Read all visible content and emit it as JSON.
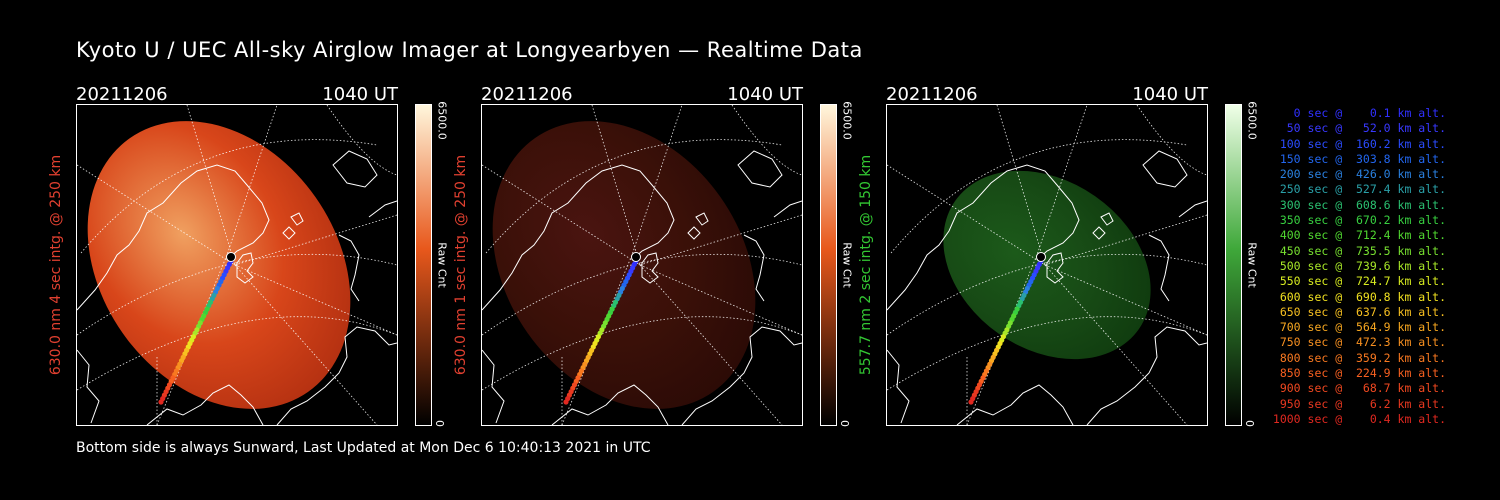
{
  "title": "Kyoto U / UEC All-sky Airglow Imager at Longyearbyen — Realtime Data",
  "footer": "Bottom side is always Sunward, Last Updated at Mon Dec  6 10:40:13 2021 in UTC",
  "colors": {
    "panel_red": "#e0401f",
    "panel_green": "#33c733"
  },
  "panels": [
    {
      "date": "20211206",
      "time": "1040 UT",
      "ylabel": "630.0 nm 4 sec intg. @ 250 km",
      "label_color": "#e04030",
      "colorbar_top": "#fff6dc",
      "colorbar_mid": "#e8581c",
      "colorbar_bottom": "#000000",
      "colorbar_max": "6500.0",
      "colorbar_min": "0",
      "colorbar_unit": "Raw Cnt",
      "image_tone": "bright-red",
      "image_level": 0.85
    },
    {
      "date": "20211206",
      "time": "1040 UT",
      "ylabel": "630.0 nm 1 sec intg. @ 250 km",
      "label_color": "#e04030",
      "colorbar_top": "#fff6dc",
      "colorbar_mid": "#e8581c",
      "colorbar_bottom": "#000000",
      "colorbar_max": "6500.0",
      "colorbar_min": "0",
      "colorbar_unit": "Raw Cnt",
      "image_tone": "dim-red",
      "image_level": 0.25
    },
    {
      "date": "20211206",
      "time": "1040 UT",
      "ylabel": "557.7 nm 2 sec intg. @ 150 km",
      "label_color": "#33c733",
      "colorbar_top": "#f0ffe8",
      "colorbar_mid": "#3fa83a",
      "colorbar_bottom": "#000000",
      "colorbar_max": "6500.0",
      "colorbar_min": "0",
      "colorbar_unit": "Raw Cnt",
      "image_tone": "dim-green",
      "image_level": 0.25
    }
  ],
  "trajectory_legend": [
    {
      "text": "   0 sec @    0.1 km alt.",
      "color": "#3030ff"
    },
    {
      "text": "  50 sec @   52.0 km alt.",
      "color": "#3838ff"
    },
    {
      "text": " 100 sec @  160.2 km alt.",
      "color": "#2a4cff"
    },
    {
      "text": " 150 sec @  303.8 km alt.",
      "color": "#2266ee"
    },
    {
      "text": " 200 sec @  426.0 km alt.",
      "color": "#2a80e0"
    },
    {
      "text": " 250 sec @  527.4 km alt.",
      "color": "#2aa0a8"
    },
    {
      "text": " 300 sec @  608.6 km alt.",
      "color": "#2ac070"
    },
    {
      "text": " 350 sec @  670.2 km alt.",
      "color": "#38d040"
    },
    {
      "text": " 400 sec @  712.4 km alt.",
      "color": "#50d830"
    },
    {
      "text": " 450 sec @  735.5 km alt.",
      "color": "#78e030"
    },
    {
      "text": " 500 sec @  739.6 km alt.",
      "color": "#a8e828"
    },
    {
      "text": " 550 sec @  724.7 km alt.",
      "color": "#d8ec20"
    },
    {
      "text": " 600 sec @  690.8 km alt.",
      "color": "#f0e020"
    },
    {
      "text": " 650 sec @  637.6 km alt.",
      "color": "#f8c020"
    },
    {
      "text": " 700 sec @  564.9 km alt.",
      "color": "#f8a820"
    },
    {
      "text": " 750 sec @  472.3 km alt.",
      "color": "#f89020"
    },
    {
      "text": " 800 sec @  359.2 km alt.",
      "color": "#f87820"
    },
    {
      "text": " 850 sec @  224.9 km alt.",
      "color": "#f86020"
    },
    {
      "text": " 900 sec @   68.7 km alt.",
      "color": "#f04820"
    },
    {
      "text": " 950 sec @    6.2 km alt.",
      "color": "#e83820"
    },
    {
      "text": "1000 sec @    0.4 km alt.",
      "color": "#e02820"
    }
  ]
}
